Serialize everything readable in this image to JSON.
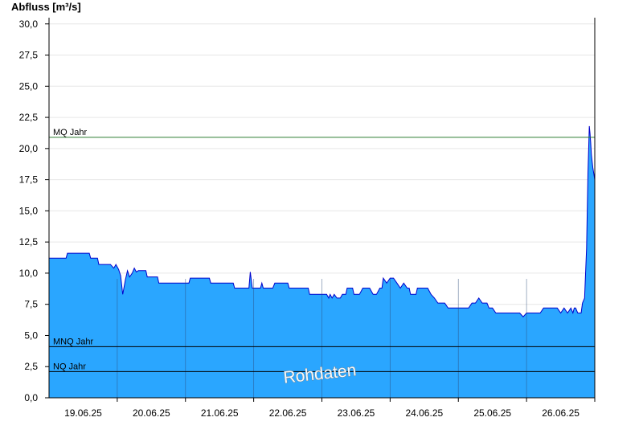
{
  "chart_data": {
    "type": "area",
    "ylabel": "Abfluss [m³/s]",
    "ylim": [
      0,
      30.5
    ],
    "yticks": [
      "0,0",
      "2,5",
      "5,0",
      "7,5",
      "10,0",
      "12,5",
      "15,0",
      "17,5",
      "20,0",
      "22,5",
      "25,0",
      "27,5",
      "30,0"
    ],
    "xlim": [
      18.0,
      26.0
    ],
    "xticks": [
      "19.06.25",
      "20.06.25",
      "21.06.25",
      "22.06.25",
      "23.06.25",
      "24.06.25",
      "25.06.25",
      "26.06.25"
    ],
    "grid": true,
    "series": [
      {
        "color": "#2aa6ff",
        "line_color": "#0000cc",
        "x": [
          18.0,
          18.25,
          18.27,
          18.59,
          18.61,
          18.71,
          18.73,
          18.9,
          18.95,
          18.98,
          19.02,
          19.05,
          19.08,
          19.12,
          19.15,
          19.18,
          19.22,
          19.25,
          19.28,
          19.31,
          19.42,
          19.44,
          19.59,
          19.61,
          19.8,
          19.83,
          20.05,
          20.07,
          20.35,
          20.37,
          20.7,
          20.72,
          20.78,
          20.8,
          20.93,
          20.95,
          20.98,
          21.05,
          21.1,
          21.12,
          21.14,
          21.28,
          21.31,
          21.5,
          21.52,
          21.6,
          21.8,
          21.82,
          22.05,
          22.07,
          22.1,
          22.12,
          22.15,
          22.18,
          22.22,
          22.27,
          22.3,
          22.35,
          22.37,
          22.45,
          22.47,
          22.55,
          22.6,
          22.65,
          22.7,
          22.75,
          22.8,
          22.85,
          22.88,
          22.9,
          22.95,
          23.0,
          23.05,
          23.1,
          23.15,
          23.2,
          23.25,
          23.28,
          23.3,
          23.32,
          23.35,
          23.38,
          23.4,
          23.42,
          23.45,
          23.48,
          23.5,
          23.52,
          23.55,
          23.6,
          23.65,
          23.7,
          23.75,
          23.8,
          23.85,
          23.9,
          23.95,
          24.0,
          24.05,
          24.1,
          24.15,
          24.2,
          24.25,
          24.3,
          24.35,
          24.4,
          24.42,
          24.45,
          24.47,
          24.5,
          24.55,
          24.6,
          24.65,
          24.7,
          24.75,
          24.8,
          24.9,
          24.95,
          25.0,
          25.05,
          25.1,
          25.15,
          25.2,
          25.25,
          25.3,
          25.35,
          25.4,
          25.45,
          25.5,
          25.55,
          25.6,
          25.65,
          25.68,
          25.7,
          25.72,
          25.75,
          25.8,
          25.82,
          25.85,
          25.88,
          25.9,
          25.92,
          25.93,
          25.94,
          25.95,
          25.97,
          26.0
        ],
        "values": [
          11.2,
          11.2,
          11.6,
          11.6,
          11.2,
          11.2,
          10.7,
          10.7,
          10.4,
          10.7,
          10.3,
          9.8,
          8.3,
          9.5,
          10.2,
          9.7,
          10.0,
          10.4,
          10.1,
          10.2,
          10.2,
          9.7,
          9.7,
          9.2,
          9.2,
          9.2,
          9.2,
          9.6,
          9.6,
          9.2,
          9.2,
          8.8,
          8.8,
          8.8,
          8.8,
          10.1,
          8.8,
          8.8,
          8.8,
          9.2,
          8.8,
          8.8,
          9.2,
          9.2,
          8.8,
          8.8,
          8.8,
          8.3,
          8.3,
          8.3,
          8.0,
          8.3,
          8.0,
          8.3,
          8.0,
          8.0,
          8.3,
          8.3,
          8.8,
          8.8,
          8.3,
          8.3,
          8.8,
          8.8,
          8.8,
          8.3,
          8.3,
          8.8,
          8.8,
          9.6,
          9.2,
          9.6,
          9.6,
          9.2,
          8.8,
          9.2,
          8.8,
          8.8,
          8.3,
          8.3,
          8.3,
          8.3,
          8.8,
          8.8,
          8.8,
          8.8,
          8.8,
          8.8,
          8.8,
          8.3,
          8.0,
          7.6,
          7.6,
          7.6,
          7.2,
          7.2,
          7.2,
          7.2,
          7.2,
          7.2,
          7.2,
          7.6,
          7.6,
          8.0,
          7.6,
          7.6,
          7.6,
          7.2,
          7.2,
          7.2,
          6.8,
          6.8,
          6.8,
          6.8,
          6.8,
          6.8,
          6.8,
          6.5,
          6.8,
          6.8,
          6.8,
          6.8,
          6.8,
          7.2,
          7.2,
          7.2,
          7.2,
          7.2,
          6.8,
          7.2,
          6.8,
          7.2,
          6.8,
          7.2,
          7.2,
          6.8,
          6.8,
          7.6,
          8.0,
          12.0,
          18.0,
          21.8,
          21.2,
          20.5,
          19.5,
          18.5,
          17.5
        ]
      }
    ],
    "reference_lines": [
      {
        "label": "MQ Jahr",
        "value": 20.9,
        "color": "#2e7d32"
      },
      {
        "label": "MNQ Jahr",
        "value": 4.1,
        "color": "#000000"
      },
      {
        "label": "NQ Jahr",
        "value": 2.1,
        "color": "#000000"
      }
    ],
    "watermark": "Rohdaten"
  }
}
